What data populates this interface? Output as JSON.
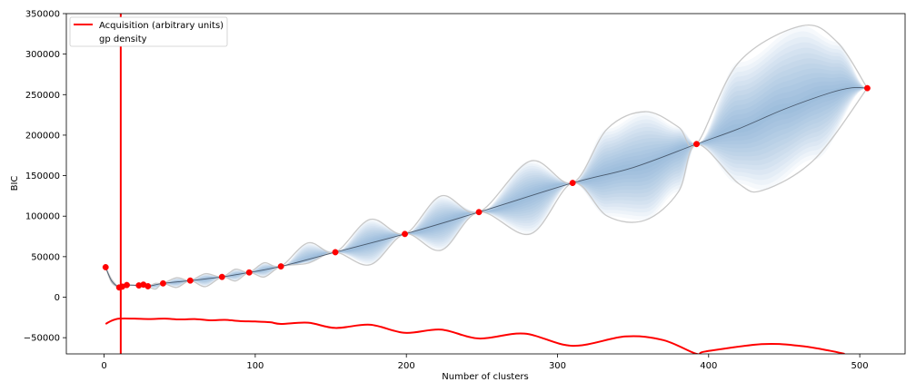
{
  "chart_data": {
    "type": "line",
    "xlabel": "Number of clusters",
    "ylabel": "BIC",
    "xlim": [
      -25,
      530
    ],
    "ylim": [
      -70000,
      350000
    ],
    "xticks": [
      0,
      100,
      200,
      300,
      400,
      500
    ],
    "yticks": [
      -50000,
      0,
      50000,
      100000,
      150000,
      200000,
      250000,
      300000,
      350000
    ],
    "grid": false,
    "legend_position": "upper-left",
    "legend": [
      {
        "label": "Acquisition (arbitrary units)",
        "color": "#ff0000",
        "style": "line"
      },
      {
        "label": "gp density",
        "color": "#ffffff",
        "style": "line"
      }
    ],
    "selected_x": 11,
    "colors": {
      "acquisition": "#ff0000",
      "gp_mean": "#4a5a6e",
      "gp_band": "#c8c8c8",
      "density": "#4f81bd",
      "observations": "#ff0000"
    },
    "observations": [
      {
        "x": 1,
        "y": 37000
      },
      {
        "x": 10,
        "y": 12000
      },
      {
        "x": 12,
        "y": 13000
      },
      {
        "x": 15,
        "y": 15000
      },
      {
        "x": 23,
        "y": 14500
      },
      {
        "x": 26,
        "y": 15500
      },
      {
        "x": 29,
        "y": 13500
      },
      {
        "x": 39,
        "y": 17000
      },
      {
        "x": 57,
        "y": 20500
      },
      {
        "x": 78,
        "y": 25000
      },
      {
        "x": 96,
        "y": 30500
      },
      {
        "x": 117,
        "y": 38000
      },
      {
        "x": 153,
        "y": 55500
      },
      {
        "x": 199,
        "y": 78000
      },
      {
        "x": 248,
        "y": 105000
      },
      {
        "x": 310,
        "y": 141000
      },
      {
        "x": 392,
        "y": 189000
      },
      {
        "x": 505,
        "y": 258000
      }
    ],
    "gp_mean": [
      [
        1,
        37000
      ],
      [
        5,
        20000
      ],
      [
        10,
        12000
      ],
      [
        12,
        13000
      ],
      [
        15,
        15000
      ],
      [
        23,
        14500
      ],
      [
        26,
        15500
      ],
      [
        29,
        13500
      ],
      [
        39,
        17000
      ],
      [
        57,
        20500
      ],
      [
        78,
        25000
      ],
      [
        96,
        30500
      ],
      [
        117,
        38000
      ],
      [
        153,
        55500
      ],
      [
        199,
        78000
      ],
      [
        248,
        105000
      ],
      [
        310,
        141000
      ],
      [
        350,
        160000
      ],
      [
        392,
        189000
      ],
      [
        420,
        208000
      ],
      [
        450,
        232000
      ],
      [
        480,
        252000
      ],
      [
        495,
        258500
      ],
      [
        505,
        258000
      ]
    ],
    "gp_upper": [
      [
        1,
        37000
      ],
      [
        5,
        22000
      ],
      [
        10,
        12000
      ],
      [
        12,
        13000
      ],
      [
        15,
        15000
      ],
      [
        23,
        14500
      ],
      [
        26,
        15500
      ],
      [
        29,
        13500
      ],
      [
        34,
        17000
      ],
      [
        39,
        17000
      ],
      [
        48,
        24000
      ],
      [
        57,
        20500
      ],
      [
        67,
        29000
      ],
      [
        78,
        25000
      ],
      [
        87,
        34500
      ],
      [
        96,
        30500
      ],
      [
        106,
        42500
      ],
      [
        117,
        38000
      ],
      [
        135,
        67000
      ],
      [
        153,
        55500
      ],
      [
        176,
        96000
      ],
      [
        199,
        78000
      ],
      [
        223,
        125000
      ],
      [
        248,
        105000
      ],
      [
        282,
        168000
      ],
      [
        310,
        141000
      ],
      [
        333,
        208000
      ],
      [
        358,
        229000
      ],
      [
        380,
        210000
      ],
      [
        392,
        189000
      ],
      [
        420,
        290000
      ],
      [
        462,
        335000
      ],
      [
        485,
        315000
      ],
      [
        505,
        258000
      ]
    ],
    "gp_lower": [
      [
        1,
        37000
      ],
      [
        5,
        18000
      ],
      [
        10,
        12000
      ],
      [
        12,
        13000
      ],
      [
        15,
        15000
      ],
      [
        23,
        14500
      ],
      [
        26,
        15500
      ],
      [
        29,
        13500
      ],
      [
        34,
        10000
      ],
      [
        39,
        17000
      ],
      [
        48,
        12000
      ],
      [
        57,
        20500
      ],
      [
        67,
        13000
      ],
      [
        78,
        25000
      ],
      [
        87,
        20000
      ],
      [
        96,
        30500
      ],
      [
        106,
        25000
      ],
      [
        117,
        38000
      ],
      [
        135,
        42000
      ],
      [
        153,
        55500
      ],
      [
        176,
        40000
      ],
      [
        199,
        78000
      ],
      [
        223,
        58000
      ],
      [
        248,
        105000
      ],
      [
        282,
        78000
      ],
      [
        310,
        141000
      ],
      [
        333,
        100000
      ],
      [
        358,
        95000
      ],
      [
        380,
        130000
      ],
      [
        392,
        189000
      ],
      [
        420,
        140000
      ],
      [
        436,
        132000
      ],
      [
        470,
        170000
      ],
      [
        505,
        258000
      ]
    ],
    "acquisition": [
      [
        1,
        -33000
      ],
      [
        5,
        -29000
      ],
      [
        10,
        -26500
      ],
      [
        20,
        -26500
      ],
      [
        30,
        -27000
      ],
      [
        40,
        -26500
      ],
      [
        50,
        -27500
      ],
      [
        60,
        -27000
      ],
      [
        70,
        -28500
      ],
      [
        80,
        -28000
      ],
      [
        90,
        -29500
      ],
      [
        100,
        -30000
      ],
      [
        110,
        -31000
      ],
      [
        117,
        -33000
      ],
      [
        135,
        -31500
      ],
      [
        153,
        -38000
      ],
      [
        176,
        -34000
      ],
      [
        199,
        -44000
      ],
      [
        223,
        -40000
      ],
      [
        248,
        -51000
      ],
      [
        278,
        -45000
      ],
      [
        310,
        -60000
      ],
      [
        345,
        -48500
      ],
      [
        370,
        -53000
      ],
      [
        392,
        -70000
      ],
      [
        398,
        -67000
      ],
      [
        435,
        -58000
      ],
      [
        460,
        -60000
      ],
      [
        480,
        -66000
      ],
      [
        490,
        -70000
      ]
    ]
  }
}
